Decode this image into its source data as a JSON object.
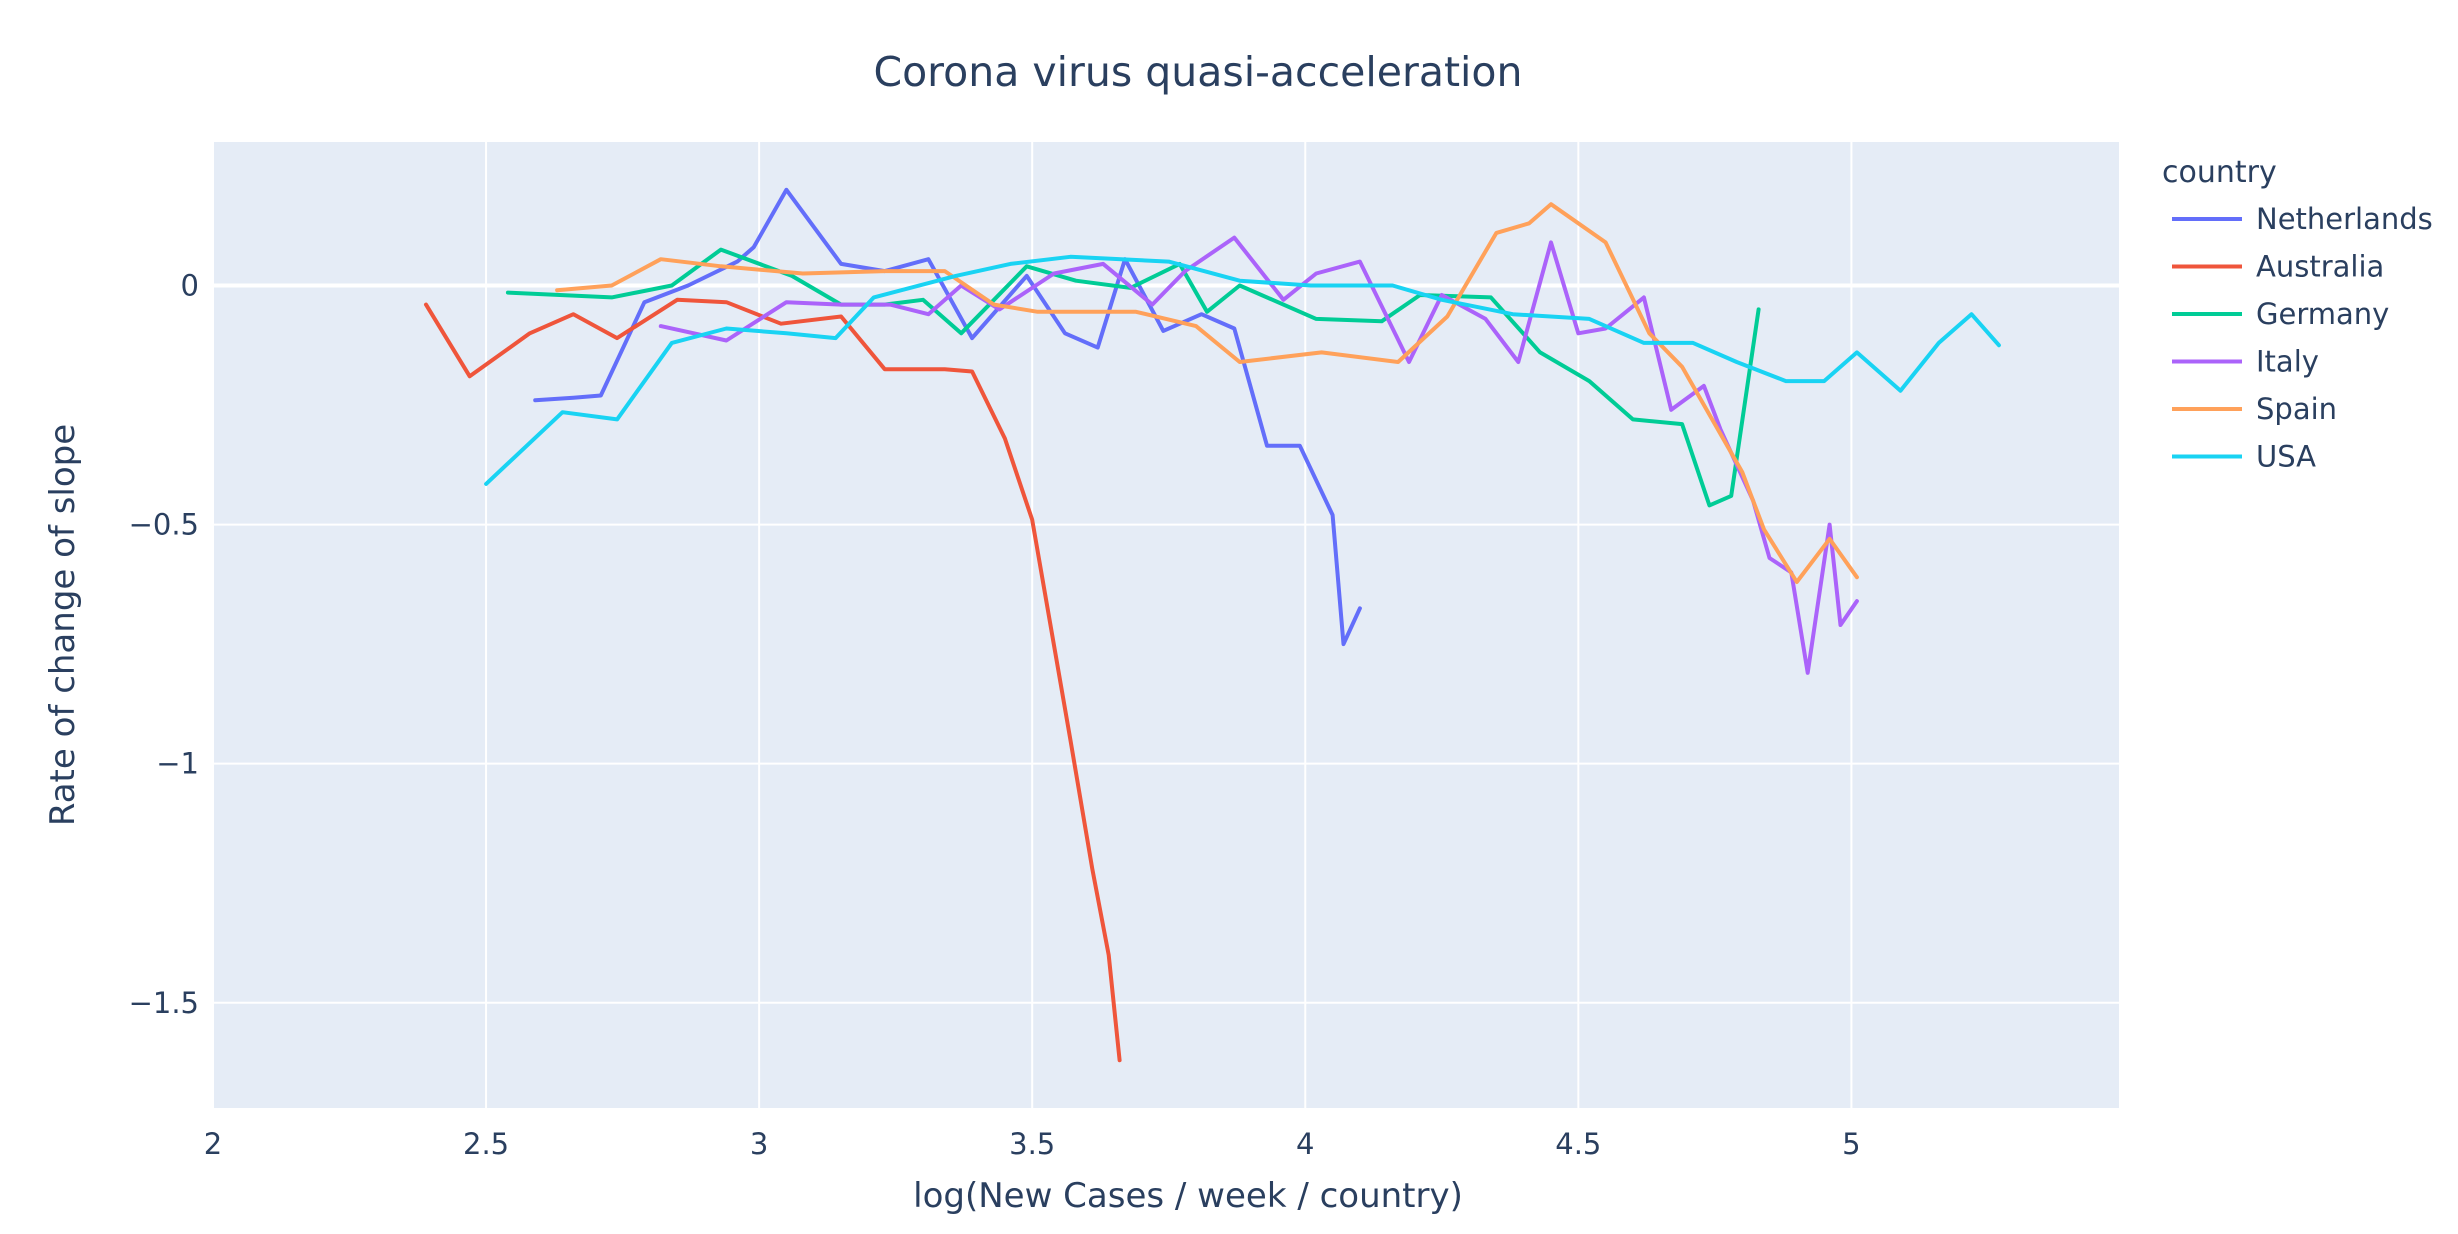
{
  "chart_data": {
    "type": "line",
    "title": "Corona virus quasi-acceleration",
    "xlabel": "log(New Cases / week / country)",
    "ylabel": "Rate of change of slope",
    "xlim": [
      2,
      5.49
    ],
    "ylim": [
      -1.72,
      0.3
    ],
    "x_ticks": [
      2,
      2.5,
      3,
      3.5,
      4,
      4.5,
      5
    ],
    "x_tick_labels": [
      "2",
      "2.5",
      "3",
      "3.5",
      "4",
      "4.5",
      "5"
    ],
    "y_ticks": [
      0,
      -0.5,
      -1,
      -1.5
    ],
    "y_tick_labels": [
      "0",
      "−0.5",
      "−1",
      "−1.5"
    ],
    "grid": true,
    "plot_background": "#e5ecf6",
    "legend_title": "country",
    "legend_position": "right",
    "series": [
      {
        "name": "Netherlands",
        "color": "#636efa",
        "x": [
          2.59,
          2.66,
          2.71,
          2.79,
          2.87,
          2.96,
          2.99,
          3.05,
          3.15,
          3.23,
          3.31,
          3.39,
          3.49,
          3.56,
          3.62,
          3.67,
          3.74,
          3.81,
          3.87,
          3.93,
          3.99,
          4.05,
          4.07,
          4.1
        ],
        "y": [
          -0.24,
          -0.235,
          -0.23,
          -0.035,
          0.0,
          0.05,
          0.08,
          0.2,
          0.045,
          0.03,
          0.055,
          -0.11,
          0.02,
          -0.1,
          -0.13,
          0.055,
          -0.095,
          -0.06,
          -0.09,
          -0.335,
          -0.335,
          -0.48,
          -0.75,
          -0.675
        ]
      },
      {
        "name": "Australia",
        "color": "#ef553b",
        "x": [
          2.39,
          2.47,
          2.58,
          2.66,
          2.74,
          2.85,
          2.94,
          3.04,
          3.15,
          3.23,
          3.34,
          3.39,
          3.45,
          3.5,
          3.57,
          3.61,
          3.64,
          3.66
        ],
        "y": [
          -0.04,
          -0.19,
          -0.1,
          -0.06,
          -0.11,
          -0.03,
          -0.035,
          -0.08,
          -0.065,
          -0.175,
          -0.175,
          -0.18,
          -0.32,
          -0.49,
          -0.95,
          -1.22,
          -1.4,
          -1.62
        ]
      },
      {
        "name": "Germany",
        "color": "#00cc96",
        "x": [
          2.54,
          2.73,
          2.84,
          2.93,
          3.06,
          3.15,
          3.23,
          3.3,
          3.37,
          3.43,
          3.49,
          3.58,
          3.68,
          3.77,
          3.82,
          3.88,
          4.02,
          4.14,
          4.21,
          4.34,
          4.43,
          4.52,
          4.6,
          4.69,
          4.74,
          4.78,
          4.83
        ],
        "y": [
          -0.015,
          -0.025,
          0.0,
          0.075,
          0.02,
          -0.04,
          -0.04,
          -0.03,
          -0.1,
          -0.03,
          0.04,
          0.01,
          -0.005,
          0.045,
          -0.055,
          0.0,
          -0.07,
          -0.075,
          -0.02,
          -0.025,
          -0.14,
          -0.2,
          -0.28,
          -0.29,
          -0.46,
          -0.44,
          -0.05
        ]
      },
      {
        "name": "Italy",
        "color": "#ab63fa",
        "x": [
          2.82,
          2.94,
          3.05,
          3.15,
          3.24,
          3.31,
          3.37,
          3.44,
          3.54,
          3.63,
          3.72,
          3.78,
          3.87,
          3.96,
          4.02,
          4.1,
          4.19,
          4.25,
          4.33,
          4.39,
          4.45,
          4.5,
          4.55,
          4.62,
          4.67,
          4.73,
          4.76,
          4.82,
          4.85,
          4.89,
          4.92,
          4.96,
          4.98,
          5.01
        ],
        "y": [
          -0.085,
          -0.115,
          -0.035,
          -0.04,
          -0.04,
          -0.06,
          0.0,
          -0.05,
          0.025,
          0.045,
          -0.04,
          0.03,
          0.1,
          -0.03,
          0.025,
          0.05,
          -0.16,
          -0.02,
          -0.07,
          -0.16,
          0.09,
          -0.1,
          -0.09,
          -0.025,
          -0.26,
          -0.21,
          -0.3,
          -0.45,
          -0.57,
          -0.6,
          -0.81,
          -0.5,
          -0.71,
          -0.66
        ]
      },
      {
        "name": "Spain",
        "color": "#ffa15a",
        "x": [
          2.63,
          2.73,
          2.82,
          2.93,
          3.08,
          3.23,
          3.34,
          3.43,
          3.51,
          3.69,
          3.8,
          3.88,
          4.03,
          4.17,
          4.26,
          4.35,
          4.41,
          4.45,
          4.55,
          4.63,
          4.69,
          4.8,
          4.84,
          4.9,
          4.96,
          5.01
        ],
        "y": [
          -0.01,
          0.0,
          0.055,
          0.04,
          0.025,
          0.03,
          0.03,
          -0.04,
          -0.055,
          -0.055,
          -0.085,
          -0.16,
          -0.14,
          -0.16,
          -0.065,
          0.11,
          0.13,
          0.17,
          0.09,
          -0.1,
          -0.17,
          -0.39,
          -0.51,
          -0.62,
          -0.53,
          -0.61
        ]
      },
      {
        "name": "USA",
        "color": "#19d3f3",
        "x": [
          2.5,
          2.64,
          2.74,
          2.84,
          2.94,
          3.05,
          3.14,
          3.21,
          3.36,
          3.46,
          3.57,
          3.75,
          3.88,
          4.01,
          4.16,
          4.25,
          4.38,
          4.52,
          4.62,
          4.71,
          4.79,
          4.88,
          4.95,
          5.01,
          5.09,
          5.16,
          5.22,
          5.27
        ],
        "y": [
          -0.415,
          -0.265,
          -0.28,
          -0.12,
          -0.09,
          -0.1,
          -0.11,
          -0.025,
          0.02,
          0.045,
          0.06,
          0.05,
          0.01,
          0.0,
          0.0,
          -0.03,
          -0.06,
          -0.07,
          -0.12,
          -0.12,
          -0.16,
          -0.2,
          -0.2,
          -0.14,
          -0.22,
          -0.12,
          -0.06,
          -0.125
        ]
      }
    ]
  }
}
